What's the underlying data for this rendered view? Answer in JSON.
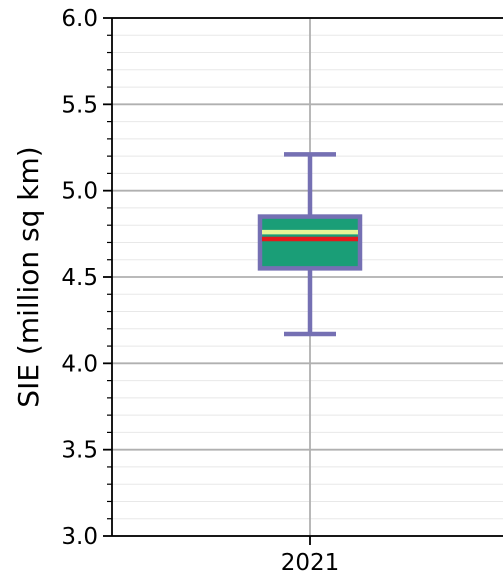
{
  "chart_data": {
    "type": "box",
    "ylabel": "SIE (million sq km)",
    "ylim": [
      3.0,
      6.0
    ],
    "y_major_ticks": [
      3.0,
      3.5,
      4.0,
      4.5,
      5.0,
      5.5,
      6.0
    ],
    "y_tick_labels": [
      "3.0",
      "3.5",
      "4.0",
      "4.5",
      "5.0",
      "5.5",
      "6.0"
    ],
    "y_minor_step": 0.1,
    "categories": [
      "2021"
    ],
    "grid": true,
    "boxes": [
      {
        "category": "2021",
        "whisker_low": 4.17,
        "q1": 4.55,
        "median": 4.72,
        "mean": 4.76,
        "q3": 4.85,
        "whisker_high": 5.21
      }
    ],
    "colors": {
      "box_fill": "#1a9e77",
      "box_edge": "#7570b3",
      "whisker": "#7570b3",
      "median_line": "#e41a1c",
      "mean_line": "#e6f598",
      "major_grid": "#b0b0b0",
      "minor_grid": "#e8e8e8"
    }
  }
}
